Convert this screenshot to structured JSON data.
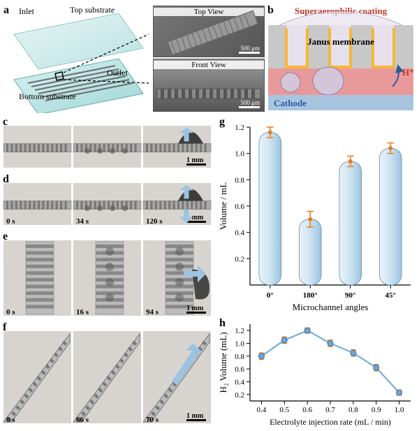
{
  "panel_a": {
    "label": "a",
    "inlet": "Inlet",
    "outlet": "Outlet",
    "top_sub": "Top substrate",
    "bottom_sub": "Bottom substrate",
    "top_view": "Top View",
    "front_view": "Front View",
    "scale_a": "500 μm",
    "scale_b": "500 μm",
    "device_fill": "#a8dadc",
    "device_edge": "#4a9aa8",
    "lines_color": "#6b6b6b"
  },
  "panel_b": {
    "label": "b",
    "superaerophilic": "Superaerophilic coating",
    "janus": "Janus membrane",
    "cathode": "Cathode",
    "hplus": "H⁺",
    "bg_top": "#ffffff",
    "coating_color": "#f7b733",
    "membrane_color": "#b8b8b8",
    "electrolyte_color": "#e89a9a",
    "cathode_color": "#a8c5e0",
    "bubble_fill": "#d4c5d8",
    "bubble_stroke": "#9a7aa8",
    "text_color_red": "#c0392b",
    "text_color_blue": "#2c5aa0"
  },
  "panel_c": {
    "label": "c",
    "times": [
      "",
      "",
      ""
    ],
    "scale": "1 mm"
  },
  "panel_d": {
    "label": "d",
    "times": [
      "0 s",
      "34 s",
      "120 s"
    ],
    "scale": "1 mm"
  },
  "panel_e": {
    "label": "e",
    "times": [
      "0 s",
      "16 s",
      "94 s"
    ],
    "scale": "1 mm"
  },
  "panel_f": {
    "label": "f",
    "times": [
      "0 s",
      "66 s",
      "70 s"
    ],
    "scale": "1 mm"
  },
  "chart_g": {
    "label": "g",
    "type": "bar",
    "ylabel": "Volume / mL",
    "xlabel": "Microchannel angles",
    "categories": [
      "0°",
      "180°",
      "90°",
      "45°"
    ],
    "values": [
      1.16,
      0.5,
      0.94,
      1.04
    ],
    "errors": [
      0.04,
      0.06,
      0.04,
      0.04
    ],
    "ylim": [
      0,
      1.2
    ],
    "yticks": [
      0.2,
      0.4,
      0.6,
      0.8,
      1.0,
      1.2
    ],
    "bar_fill": "#cde3f0",
    "bar_stroke": "#5a8db5",
    "error_color": "#e67e22",
    "label_fontsize": 13,
    "tick_fontsize": 11,
    "bar_width_ratio": 0.55
  },
  "chart_h": {
    "label": "h",
    "type": "line",
    "ylabel": "H₂ Volume (mL)",
    "xlabel": "Electrolyte injection rate (mL / min)",
    "x": [
      0.4,
      0.5,
      0.6,
      0.7,
      0.8,
      0.9,
      1.0
    ],
    "y": [
      0.8,
      1.05,
      1.2,
      1.0,
      0.85,
      0.62,
      0.23
    ],
    "errors": [
      0.05,
      0.05,
      0.04,
      0.05,
      0.05,
      0.05,
      0.04
    ],
    "xlim": [
      0.35,
      1.05
    ],
    "ylim": [
      0.1,
      1.3
    ],
    "yticks": [
      0.2,
      0.4,
      0.6,
      0.8,
      1.0,
      1.2
    ],
    "xticks": [
      0.4,
      0.5,
      0.6,
      0.7,
      0.8,
      0.9,
      1.0
    ],
    "line_color": "#6fa8d6",
    "marker_fill": "#6fa8d6",
    "error_color": "#e67e22",
    "marker_size": 4,
    "line_width": 2
  },
  "arrow_color": "#9cc3e0"
}
